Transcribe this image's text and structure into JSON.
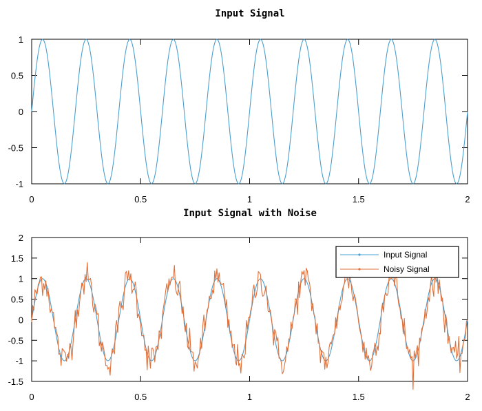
{
  "chart_data": [
    {
      "type": "line",
      "title": "Input Signal",
      "xlabel": "",
      "ylabel": "",
      "xlim": [
        0,
        2
      ],
      "ylim": [
        -1,
        1
      ],
      "xticks": [
        "0",
        "0.5",
        "1",
        "1.5",
        "2"
      ],
      "yticks": [
        "-1",
        "-0.5",
        "0",
        "0.5",
        "1"
      ],
      "grid": false,
      "legend": null,
      "series": [
        {
          "color": "#4a9fd0",
          "frequency_hz": 5,
          "amplitude": 1,
          "x_start": 0,
          "x_end": 2,
          "samples": 400
        }
      ]
    },
    {
      "type": "line",
      "title": "Input Signal with Noise",
      "xlabel": "",
      "ylabel": "",
      "xlim": [
        0,
        2
      ],
      "ylim": [
        -1.5,
        2
      ],
      "xticks": [
        "0",
        "0.5",
        "1",
        "1.5",
        "2"
      ],
      "yticks": [
        "-1.5",
        "-1",
        "-0.5",
        "0",
        "0.5",
        "1",
        "1.5",
        "2"
      ],
      "grid": false,
      "legend": "top-right",
      "series": [
        {
          "name": "Input Signal",
          "color": "#4a9fd0",
          "frequency_hz": 5,
          "amplitude": 1,
          "x_start": 0,
          "x_end": 2,
          "samples": 400
        },
        {
          "name": "Noisy Signal",
          "color": "#e0703a",
          "frequency_hz": 5,
          "amplitude": 1,
          "noise_std": 0.2,
          "x_start": 0,
          "x_end": 2,
          "samples": 400
        }
      ]
    }
  ]
}
